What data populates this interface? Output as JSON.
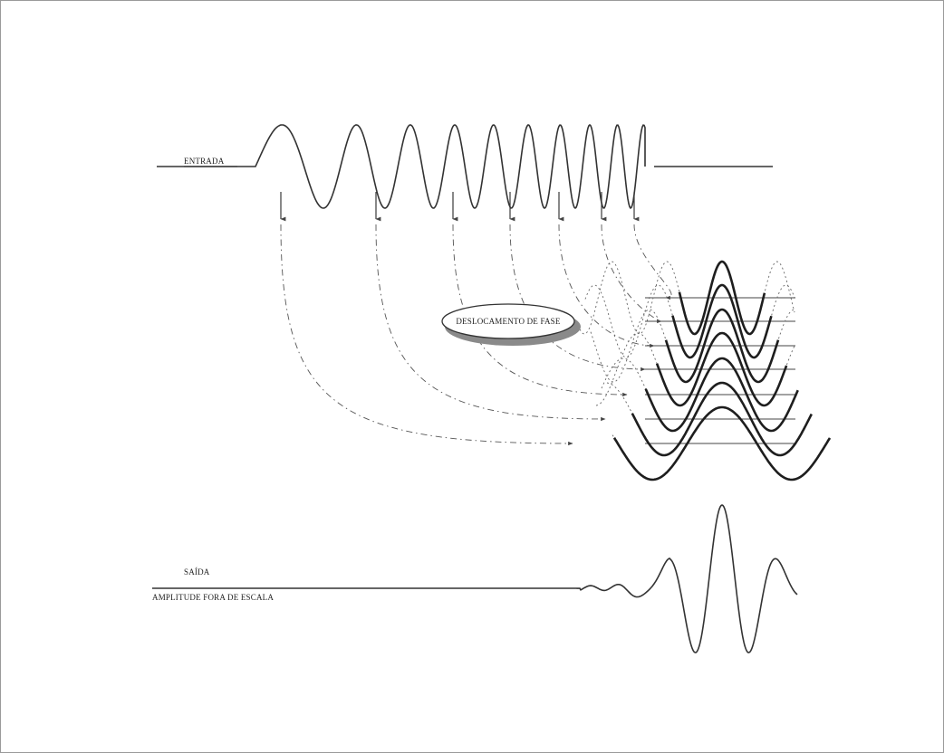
{
  "labels": {
    "input": "ENTRADA",
    "phase_shift": "DESLOCAMENTO DE FASE",
    "output": "SAÍDA",
    "scale_note": "AMPLITUDE FORA DE ESCALA"
  },
  "colors": {
    "ink": "#333333",
    "ellipse_shadow": "#8a8a8a",
    "frame": "#9a9a9a"
  }
}
